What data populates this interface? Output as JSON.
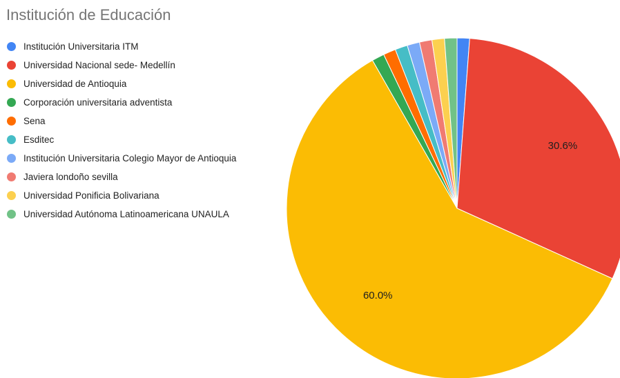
{
  "chart_data": {
    "type": "pie",
    "title": "Institución de Educación",
    "legend_position": "left",
    "slices": [
      {
        "label": "Institución Universitaria ITM",
        "value": 1.18,
        "color": "#4285f4",
        "display_label": ""
      },
      {
        "label": "Universidad Nacional sede- Medellín",
        "value": 30.6,
        "color": "#ea4335",
        "display_label": "30.6%"
      },
      {
        "label": "Universidad de Antioquia",
        "value": 60.0,
        "color": "#fbbc04",
        "display_label": "60.0%"
      },
      {
        "label": "Corporación universitaria adventista",
        "value": 1.18,
        "color": "#34a853",
        "display_label": ""
      },
      {
        "label": "Sena",
        "value": 1.18,
        "color": "#ff6d01",
        "display_label": ""
      },
      {
        "label": "Esditec",
        "value": 1.18,
        "color": "#46bdc6",
        "display_label": ""
      },
      {
        "label": "Institución Universitaria Colegio Mayor de Antioquia",
        "value": 1.18,
        "color": "#7baaf7",
        "display_label": ""
      },
      {
        "label": "Javiera londoño sevilla",
        "value": 1.18,
        "color": "#f07b72",
        "display_label": ""
      },
      {
        "label": "Universidad Ponificia Bolivariana",
        "value": 1.18,
        "color": "#fcd04f",
        "display_label": ""
      },
      {
        "label": "Universidad Autónoma Latinoamericana UNAULA",
        "value": 1.18,
        "color": "#71c287",
        "display_label": ""
      }
    ]
  }
}
